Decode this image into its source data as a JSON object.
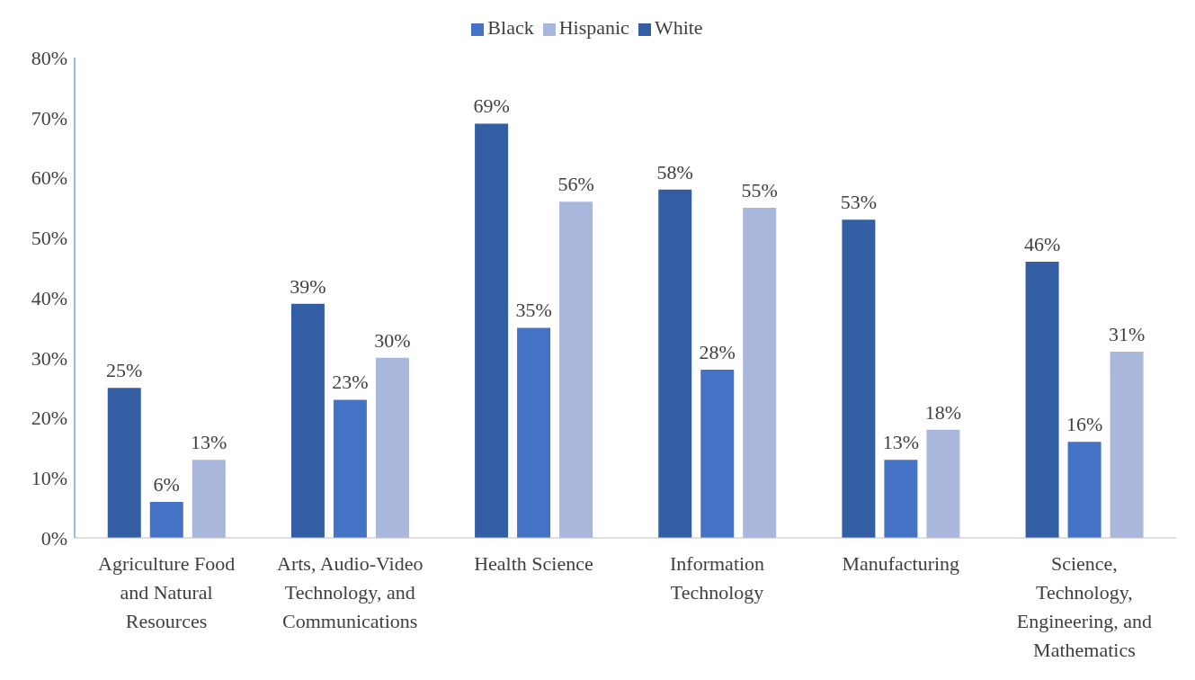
{
  "chart_data": {
    "type": "bar",
    "categories": [
      "Agriculture Food and Natural Resources",
      "Arts, Audio-Video Technology, and Communications",
      "Health Science",
      "Information Technology",
      "Manufacturing",
      "Science, Technology, Engineering, and Mathematics"
    ],
    "series": [
      {
        "name": "White",
        "color": "#345ea3",
        "values": [
          25,
          39,
          69,
          58,
          53,
          46
        ],
        "value_labels": [
          "25%",
          "39%",
          "69%",
          "58%",
          "53%",
          "46%"
        ]
      },
      {
        "name": "Black",
        "color": "#4472c4",
        "values": [
          6,
          23,
          35,
          28,
          13,
          16
        ],
        "value_labels": [
          "6%",
          "23%",
          "35%",
          "28%",
          "13%",
          "16%"
        ]
      },
      {
        "name": "Hispanic",
        "color": "#a9b7dc",
        "values": [
          13,
          30,
          56,
          55,
          18,
          31
        ],
        "value_labels": [
          "13%",
          "30%",
          "56%",
          "55%",
          "18%",
          "31%"
        ]
      }
    ],
    "ylim": [
      0,
      80
    ],
    "yticks": [
      {
        "value": 0,
        "label": "0%"
      },
      {
        "value": 10,
        "label": "10%"
      },
      {
        "value": 20,
        "label": "20%"
      },
      {
        "value": 30,
        "label": "30%"
      },
      {
        "value": 40,
        "label": "40%"
      },
      {
        "value": 50,
        "label": "50%"
      },
      {
        "value": 60,
        "label": "60%"
      },
      {
        "value": 70,
        "label": "70%"
      },
      {
        "value": 80,
        "label": "80%"
      }
    ],
    "grid": false,
    "legend": "top"
  }
}
